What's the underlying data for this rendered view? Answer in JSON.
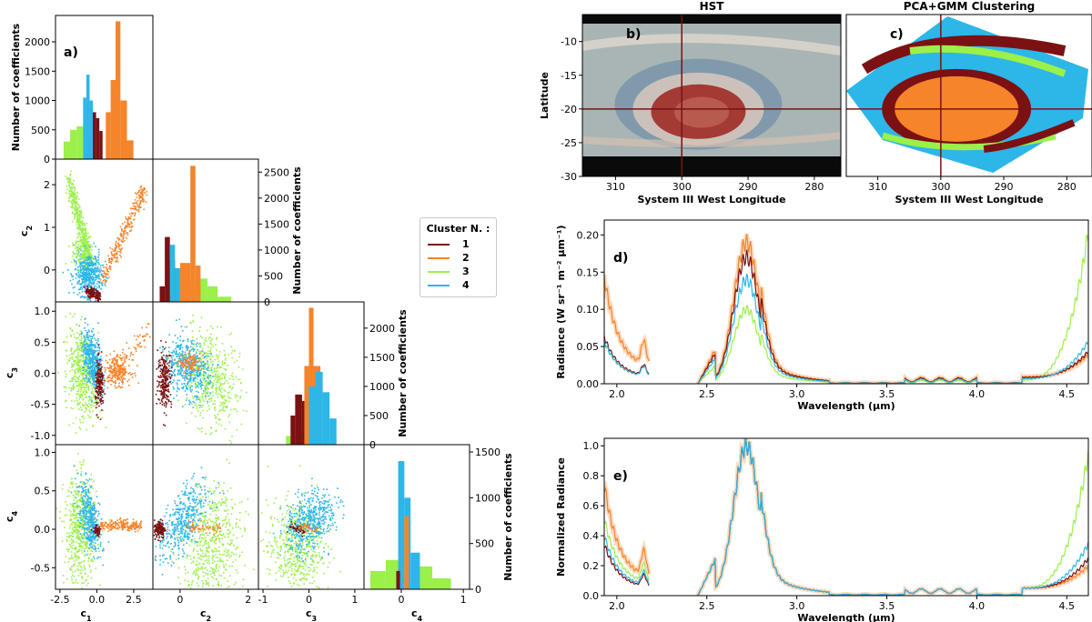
{
  "colors": {
    "c1": "#7b1113",
    "c2": "#f5842a",
    "c3": "#9bf04a",
    "c4": "#2db6e8"
  },
  "legend": {
    "title": "Cluster N. :",
    "items": [
      "1",
      "2",
      "3",
      "4"
    ]
  },
  "corner": {
    "label": "a)",
    "hist_ylabel": "Number of coefficients",
    "var_labels": [
      "c",
      "c",
      "c",
      "c"
    ],
    "var_subs": [
      "1",
      "2",
      "3",
      "4"
    ],
    "c1_ticks": [
      "-2.5",
      "0.0",
      "2.5"
    ],
    "c2_ticks": [
      "0",
      "2"
    ],
    "c2_yticks": [
      "0",
      "1",
      "2"
    ],
    "c3_ticks": [
      "-1",
      "0",
      "1"
    ],
    "c3_yticks": [
      "-1.0",
      "-0.5",
      "0.0",
      "0.5",
      "1.0"
    ],
    "c4_ticks": [
      "0",
      "1"
    ],
    "c4_yticks": [
      "-0.5",
      "0.0",
      "0.5",
      "1.0"
    ]
  },
  "chart_data": [
    {
      "type": "bar",
      "id": "hist-c1",
      "ylabel": "Number of coefficients",
      "yticks": [
        "0",
        "500",
        "1000",
        "1500",
        "2000"
      ],
      "ylim": [
        0,
        2450
      ],
      "xlim": [
        -2.5,
        3.5
      ],
      "series": [
        {
          "name": "1",
          "bins": [
            [
              -0.6,
              -0.4,
              380
            ],
            [
              -0.4,
              -0.2,
              520
            ],
            [
              -0.2,
              0.0,
              800
            ],
            [
              0.0,
              0.2,
              700
            ],
            [
              0.2,
              0.4,
              480
            ]
          ]
        },
        {
          "name": "4",
          "bins": [
            [
              -1.0,
              -0.8,
              500
            ],
            [
              -0.8,
              -0.6,
              1050
            ],
            [
              -0.6,
              -0.4,
              1440
            ],
            [
              -0.4,
              -0.2,
              1000
            ]
          ]
        },
        {
          "name": "3",
          "bins": [
            [
              -2.0,
              -1.6,
              300
            ],
            [
              -1.6,
              -1.2,
              500
            ],
            [
              -1.2,
              -0.8,
              560
            ]
          ]
        },
        {
          "name": "2",
          "bins": [
            [
              0.6,
              0.9,
              800
            ],
            [
              0.9,
              1.2,
              1350
            ],
            [
              1.2,
              1.5,
              2350
            ],
            [
              1.5,
              1.9,
              1000
            ],
            [
              1.9,
              2.3,
              320
            ]
          ]
        }
      ]
    },
    {
      "type": "scatter",
      "id": "c1-c2",
      "xlim": [
        -2.8,
        3.8
      ],
      "ylim": [
        -0.75,
        2.6
      ],
      "ylabel": "c2",
      "yticks": [
        0,
        1,
        2
      ]
    },
    {
      "type": "bar",
      "id": "hist-c2",
      "ylabel": "Number of coefficients",
      "yticks": [
        "0",
        "500",
        "1000",
        "1500",
        "2000",
        "2500"
      ],
      "ylim": [
        0,
        2750
      ],
      "xlim": [
        -0.8,
        2.3
      ],
      "series": [
        {
          "name": "1",
          "bins": [
            [
              -0.6,
              -0.45,
              300
            ],
            [
              -0.45,
              -0.3,
              1250
            ],
            [
              -0.3,
              -0.15,
              800
            ]
          ]
        },
        {
          "name": "4",
          "bins": [
            [
              -0.3,
              -0.15,
              1100
            ],
            [
              -0.15,
              0.0,
              650
            ]
          ]
        },
        {
          "name": "3",
          "bins": [
            [
              0.2,
              0.5,
              400
            ],
            [
              0.5,
              0.8,
              450
            ],
            [
              0.8,
              1.1,
              300
            ],
            [
              1.1,
              1.5,
              100
            ]
          ]
        },
        {
          "name": "2",
          "bins": [
            [
              0.0,
              0.3,
              750
            ],
            [
              0.3,
              0.45,
              2620
            ],
            [
              0.45,
              0.6,
              700
            ]
          ]
        }
      ]
    },
    {
      "type": "scatter",
      "id": "c1-c3",
      "xlim": [
        -2.8,
        3.8
      ],
      "ylim": [
        -1.15,
        1.15
      ]
    },
    {
      "type": "scatter",
      "id": "c2-c3",
      "xlim": [
        -0.8,
        2.3
      ],
      "ylim": [
        -1.15,
        1.15
      ]
    },
    {
      "type": "bar",
      "id": "hist-c3",
      "ylabel": "Number of coefficients",
      "yticks": [
        "0",
        "500",
        "1000",
        "1500",
        "2000"
      ],
      "ylim": [
        0,
        2450
      ],
      "xlim": [
        -1.1,
        1.2
      ],
      "series": [
        {
          "name": "3",
          "bins": [
            [
              -0.5,
              -0.3,
              150
            ],
            [
              -0.3,
              -0.1,
              300
            ]
          ]
        },
        {
          "name": "1",
          "bins": [
            [
              -0.4,
              -0.3,
              500
            ],
            [
              -0.3,
              -0.15,
              860
            ],
            [
              -0.15,
              0.0,
              750
            ]
          ]
        },
        {
          "name": "2",
          "bins": [
            [
              -0.1,
              0.0,
              1350
            ],
            [
              0.0,
              0.1,
              2350
            ],
            [
              0.1,
              0.25,
              1350
            ]
          ]
        },
        {
          "name": "4",
          "bins": [
            [
              0.0,
              0.15,
              1000
            ],
            [
              0.15,
              0.3,
              1250
            ],
            [
              0.3,
              0.45,
              900
            ],
            [
              0.45,
              0.6,
              450
            ]
          ]
        }
      ]
    },
    {
      "type": "scatter",
      "id": "c1-c4",
      "xlim": [
        -2.8,
        3.8
      ],
      "ylim": [
        -0.78,
        1.1
      ]
    },
    {
      "type": "scatter",
      "id": "c2-c4",
      "xlim": [
        -0.8,
        2.3
      ],
      "ylim": [
        -0.78,
        1.1
      ]
    },
    {
      "type": "scatter",
      "id": "c3-c4",
      "xlim": [
        -1.1,
        1.2
      ],
      "ylim": [
        -0.78,
        1.1
      ]
    },
    {
      "type": "bar",
      "id": "hist-c4",
      "ylabel": "Number of coefficients",
      "yticks": [
        "0",
        "500",
        "1000",
        "1500"
      ],
      "ylim": [
        0,
        1580
      ],
      "xlim": [
        -0.6,
        1.1
      ],
      "series": [
        {
          "name": "3",
          "bins": [
            [
              -0.5,
              -0.25,
              200
            ],
            [
              -0.25,
              -0.05,
              320
            ],
            [
              0.2,
              0.5,
              250
            ],
            [
              0.5,
              0.8,
              120
            ]
          ]
        },
        {
          "name": "4",
          "bins": [
            [
              -0.05,
              0.05,
              1400
            ],
            [
              0.05,
              0.15,
              1000
            ],
            [
              0.15,
              0.3,
              400
            ]
          ]
        },
        {
          "name": "2",
          "bins": [
            [
              0.05,
              0.12,
              800
            ]
          ]
        },
        {
          "name": "1",
          "bins": [
            [
              -0.08,
              -0.02,
              200
            ]
          ]
        }
      ]
    },
    {
      "type": "heatmap",
      "id": "hst-map",
      "label": "b)",
      "title": "HST",
      "xlabel": "System III West Longitude",
      "ylabel": "Latitude",
      "xticks": [
        "310",
        "300",
        "290",
        "280"
      ],
      "xlim": [
        315,
        276
      ],
      "yticks": [
        "-10",
        "-15",
        "-20",
        "-25",
        "-30"
      ],
      "ylim": [
        -30,
        -6
      ],
      "crosshair": {
        "lon": 300,
        "lat": -20
      }
    },
    {
      "type": "heatmap",
      "id": "cluster-map",
      "label": "c)",
      "title": "PCA+GMM Clustering",
      "xlabel": "System III West Longitude",
      "xticks": [
        "310",
        "300",
        "290",
        "280"
      ],
      "xlim": [
        315,
        276
      ],
      "ylim": [
        -30,
        -6
      ],
      "crosshair": {
        "lon": 300,
        "lat": -20
      }
    },
    {
      "type": "line",
      "id": "radiance",
      "label": "d)",
      "xlabel": "Wavelength (μm)",
      "ylabel": "Radiance (W sr⁻¹ m⁻² μm⁻¹)",
      "xlim": [
        1.93,
        4.62
      ],
      "ylim": [
        0,
        0.22
      ],
      "xticks": [
        "2.0",
        "2.5",
        "3.0",
        "3.5",
        "4.0",
        "4.5"
      ],
      "yticks": [
        "0.00",
        "0.05",
        "0.10",
        "0.15",
        "0.20"
      ],
      "series": [
        {
          "name": "1",
          "peak": 0.17,
          "short": 0.055,
          "tail": 0.035
        },
        {
          "name": "2",
          "peak": 0.19,
          "short": 0.125,
          "tail": 0.03
        },
        {
          "name": "3",
          "peak": 0.1,
          "short": 0.05,
          "tail": 0.2
        },
        {
          "name": "4",
          "peak": 0.14,
          "short": 0.05,
          "tail": 0.05
        }
      ]
    },
    {
      "type": "line",
      "id": "normalized",
      "label": "e)",
      "xlabel": "Wavelength (μm)",
      "ylabel": "Normalized Radiance",
      "xlim": [
        1.93,
        4.62
      ],
      "ylim": [
        0,
        1.05
      ],
      "xticks": [
        "2.0",
        "2.5",
        "3.0",
        "3.5",
        "4.0",
        "4.5"
      ],
      "yticks": [
        "0.0",
        "0.2",
        "0.4",
        "0.6",
        "0.8",
        "1.0"
      ],
      "series": [
        {
          "name": "1",
          "peak": 1.0,
          "short": 0.3,
          "tail": 0.2
        },
        {
          "name": "2",
          "peak": 1.0,
          "short": 0.65,
          "tail": 0.15
        },
        {
          "name": "3",
          "peak": 1.0,
          "short": 0.45,
          "tail": 0.9
        },
        {
          "name": "4",
          "peak": 1.0,
          "short": 0.35,
          "tail": 0.3
        }
      ]
    }
  ]
}
